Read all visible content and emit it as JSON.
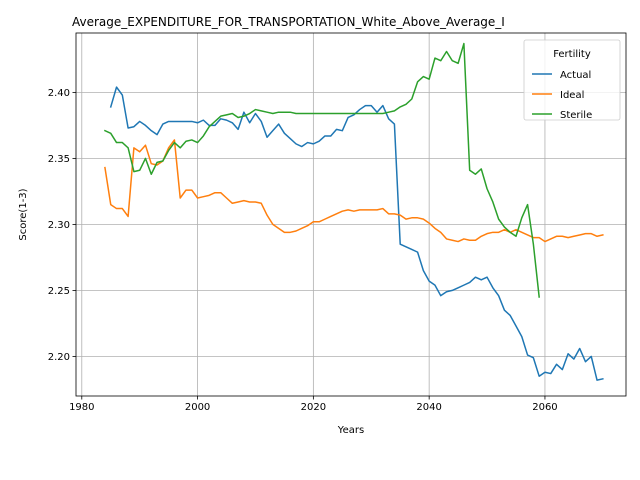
{
  "chart_data": {
    "type": "line",
    "title": "Average_EXPENDITURE_FOR_TRANSPORTATION_White_Above_Average_I",
    "xlabel": "Years",
    "ylabel": "Score(1-3)",
    "xlim": [
      1979,
      2074
    ],
    "ylim": [
      2.17,
      2.445
    ],
    "xticks": [
      1980,
      2000,
      2020,
      2040,
      2060
    ],
    "yticks": [
      2.2,
      2.25,
      2.3,
      2.35,
      2.4
    ],
    "xtick_labels": [
      "1980",
      "2000",
      "2020",
      "2040",
      "2060"
    ],
    "ytick_labels": [
      "2.20",
      "2.25",
      "2.30",
      "2.35",
      "2.40"
    ],
    "grid": true,
    "legend": {
      "title": "Fertility",
      "placement": "top-right"
    },
    "series": [
      {
        "name": "Actual",
        "color": "#1f77b4",
        "x": [
          1985,
          1986,
          1987,
          1988,
          1989,
          1990,
          1991,
          1992,
          1993,
          1994,
          1995,
          1996,
          1997,
          1998,
          1999,
          2000,
          2001,
          2002,
          2003,
          2004,
          2005,
          2006,
          2007,
          2008,
          2009,
          2010,
          2011,
          2012,
          2013,
          2014,
          2015,
          2016,
          2017,
          2018,
          2019,
          2020,
          2021,
          2022,
          2023,
          2024,
          2025,
          2026,
          2027,
          2028,
          2029,
          2030,
          2031,
          2032,
          2033,
          2034,
          2035,
          2036,
          2037,
          2038,
          2039,
          2040,
          2041,
          2042,
          2043,
          2044,
          2045,
          2046,
          2047,
          2048,
          2049,
          2050,
          2051,
          2052,
          2053,
          2054,
          2055,
          2056,
          2057,
          2058,
          2059,
          2060,
          2061,
          2062,
          2063,
          2064,
          2065,
          2066,
          2067,
          2068,
          2069,
          2070
        ],
        "y": [
          2.389,
          2.404,
          2.398,
          2.373,
          2.374,
          2.378,
          2.375,
          2.371,
          2.368,
          2.376,
          2.378,
          2.378,
          2.378,
          2.378,
          2.378,
          2.377,
          2.379,
          2.375,
          2.375,
          2.38,
          2.379,
          2.377,
          2.372,
          2.385,
          2.377,
          2.384,
          2.378,
          2.366,
          2.371,
          2.376,
          2.369,
          2.365,
          2.361,
          2.359,
          2.362,
          2.361,
          2.363,
          2.367,
          2.367,
          2.372,
          2.371,
          2.381,
          2.383,
          2.387,
          2.39,
          2.39,
          2.385,
          2.39,
          2.38,
          2.376,
          2.285,
          2.283,
          2.281,
          2.279,
          2.265,
          2.257,
          2.254,
          2.246,
          2.249,
          2.25,
          2.252,
          2.254,
          2.256,
          2.26,
          2.258,
          2.26,
          2.252,
          2.246,
          2.235,
          2.231,
          2.223,
          2.215,
          2.201,
          2.199,
          2.185,
          2.188,
          2.187,
          2.194,
          2.19,
          2.202,
          2.198,
          2.206,
          2.196,
          2.2,
          2.182,
          2.183
        ]
      },
      {
        "name": "Ideal",
        "color": "#ff7f0e",
        "x": [
          1984,
          1985,
          1986,
          1987,
          1988,
          1989,
          1990,
          1991,
          1992,
          1993,
          1994,
          1995,
          1996,
          1997,
          1998,
          1999,
          2000,
          2001,
          2002,
          2003,
          2004,
          2005,
          2006,
          2007,
          2008,
          2009,
          2010,
          2011,
          2012,
          2013,
          2014,
          2015,
          2016,
          2017,
          2018,
          2019,
          2020,
          2021,
          2022,
          2023,
          2024,
          2025,
          2026,
          2027,
          2028,
          2029,
          2030,
          2031,
          2032,
          2033,
          2034,
          2035,
          2036,
          2037,
          2038,
          2039,
          2040,
          2041,
          2042,
          2043,
          2044,
          2045,
          2046,
          2047,
          2048,
          2049,
          2050,
          2051,
          2052,
          2053,
          2054,
          2055,
          2056,
          2057,
          2058,
          2059,
          2060,
          2061,
          2062,
          2063,
          2064,
          2065,
          2066,
          2067,
          2068,
          2069,
          2070
        ],
        "y": [
          2.343,
          2.315,
          2.312,
          2.312,
          2.306,
          2.358,
          2.355,
          2.36,
          2.346,
          2.345,
          2.348,
          2.358,
          2.364,
          2.32,
          2.326,
          2.326,
          2.32,
          2.321,
          2.322,
          2.324,
          2.324,
          2.32,
          2.316,
          2.317,
          2.318,
          2.317,
          2.317,
          2.316,
          2.307,
          2.3,
          2.297,
          2.294,
          2.294,
          2.295,
          2.297,
          2.299,
          2.302,
          2.302,
          2.304,
          2.306,
          2.308,
          2.31,
          2.311,
          2.31,
          2.311,
          2.311,
          2.311,
          2.311,
          2.312,
          2.308,
          2.308,
          2.307,
          2.304,
          2.305,
          2.305,
          2.304,
          2.301,
          2.297,
          2.294,
          2.289,
          2.288,
          2.287,
          2.289,
          2.288,
          2.288,
          2.291,
          2.293,
          2.294,
          2.294,
          2.296,
          2.294,
          2.296,
          2.294,
          2.292,
          2.29,
          2.29,
          2.287,
          2.289,
          2.291,
          2.291,
          2.29,
          2.291,
          2.292,
          2.293,
          2.293,
          2.291,
          2.292
        ]
      },
      {
        "name": "Sterile",
        "color": "#2ca02c",
        "x": [
          1984,
          1985,
          1986,
          1987,
          1988,
          1989,
          1990,
          1991,
          1992,
          1993,
          1994,
          1995,
          1996,
          1997,
          1998,
          1999,
          2000,
          2001,
          2002,
          2003,
          2004,
          2005,
          2006,
          2007,
          2008,
          2009,
          2010,
          2011,
          2012,
          2013,
          2014,
          2015,
          2016,
          2017,
          2018,
          2019,
          2020,
          2021,
          2022,
          2023,
          2024,
          2025,
          2026,
          2027,
          2028,
          2029,
          2030,
          2031,
          2032,
          2033,
          2034,
          2035,
          2036,
          2037,
          2038,
          2039,
          2040,
          2041,
          2042,
          2043,
          2044,
          2045,
          2046,
          2047,
          2048,
          2049,
          2050,
          2051,
          2052,
          2053,
          2054,
          2055,
          2056,
          2057,
          2058,
          2059
        ],
        "y": [
          2.371,
          2.369,
          2.362,
          2.362,
          2.358,
          2.34,
          2.341,
          2.35,
          2.338,
          2.347,
          2.348,
          2.356,
          2.362,
          2.358,
          2.363,
          2.364,
          2.362,
          2.367,
          2.374,
          2.378,
          2.382,
          2.383,
          2.384,
          2.381,
          2.382,
          2.384,
          2.387,
          2.386,
          2.385,
          2.384,
          2.385,
          2.385,
          2.385,
          2.384,
          2.384,
          2.384,
          2.384,
          2.384,
          2.384,
          2.384,
          2.384,
          2.384,
          2.384,
          2.384,
          2.384,
          2.384,
          2.384,
          2.384,
          2.384,
          2.385,
          2.386,
          2.389,
          2.391,
          2.395,
          2.408,
          2.412,
          2.41,
          2.426,
          2.424,
          2.431,
          2.424,
          2.422,
          2.437,
          2.341,
          2.338,
          2.342,
          2.327,
          2.317,
          2.304,
          2.298,
          2.294,
          2.291,
          2.305,
          2.315,
          2.285,
          2.245
        ]
      }
    ]
  }
}
